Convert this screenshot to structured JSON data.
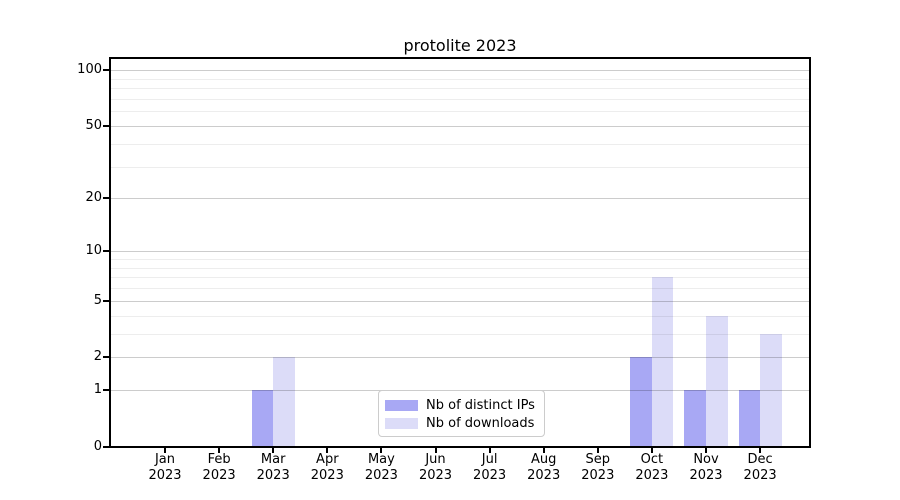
{
  "chart_data": {
    "type": "bar",
    "title": "protolite 2023",
    "x_categories_line1": [
      "Jan",
      "Feb",
      "Mar",
      "Apr",
      "May",
      "Jun",
      "Jul",
      "Aug",
      "Sep",
      "Oct",
      "Nov",
      "Dec"
    ],
    "x_categories_line2": [
      "2023",
      "2023",
      "2023",
      "2023",
      "2023",
      "2023",
      "2023",
      "2023",
      "2023",
      "2023",
      "2023",
      "2023"
    ],
    "series": [
      {
        "name": "Nb of distinct IPs",
        "color": "#a8a8f4",
        "values": [
          0,
          0,
          1,
          0,
          0,
          0,
          0,
          0,
          0,
          2,
          1,
          1
        ]
      },
      {
        "name": "Nb of downloads",
        "color": "#dcdcf8",
        "values": [
          0,
          0,
          2,
          0,
          0,
          0,
          0,
          0,
          0,
          7,
          4,
          3
        ]
      }
    ],
    "y_axis": {
      "scale": "log1p",
      "major_ticks": [
        0,
        1,
        2,
        5,
        10,
        20,
        50,
        100
      ],
      "minor_ticks": [
        3,
        4,
        6,
        7,
        8,
        9,
        30,
        40,
        60,
        70,
        80,
        90
      ],
      "y_max": 115
    },
    "legend_position": "bottom-center",
    "grid": {
      "major_color": "#cbcbcb",
      "minor_color": "#ececec"
    },
    "frame_color": "#000000",
    "text_color": "#000000",
    "background_color": "#ffffff"
  }
}
